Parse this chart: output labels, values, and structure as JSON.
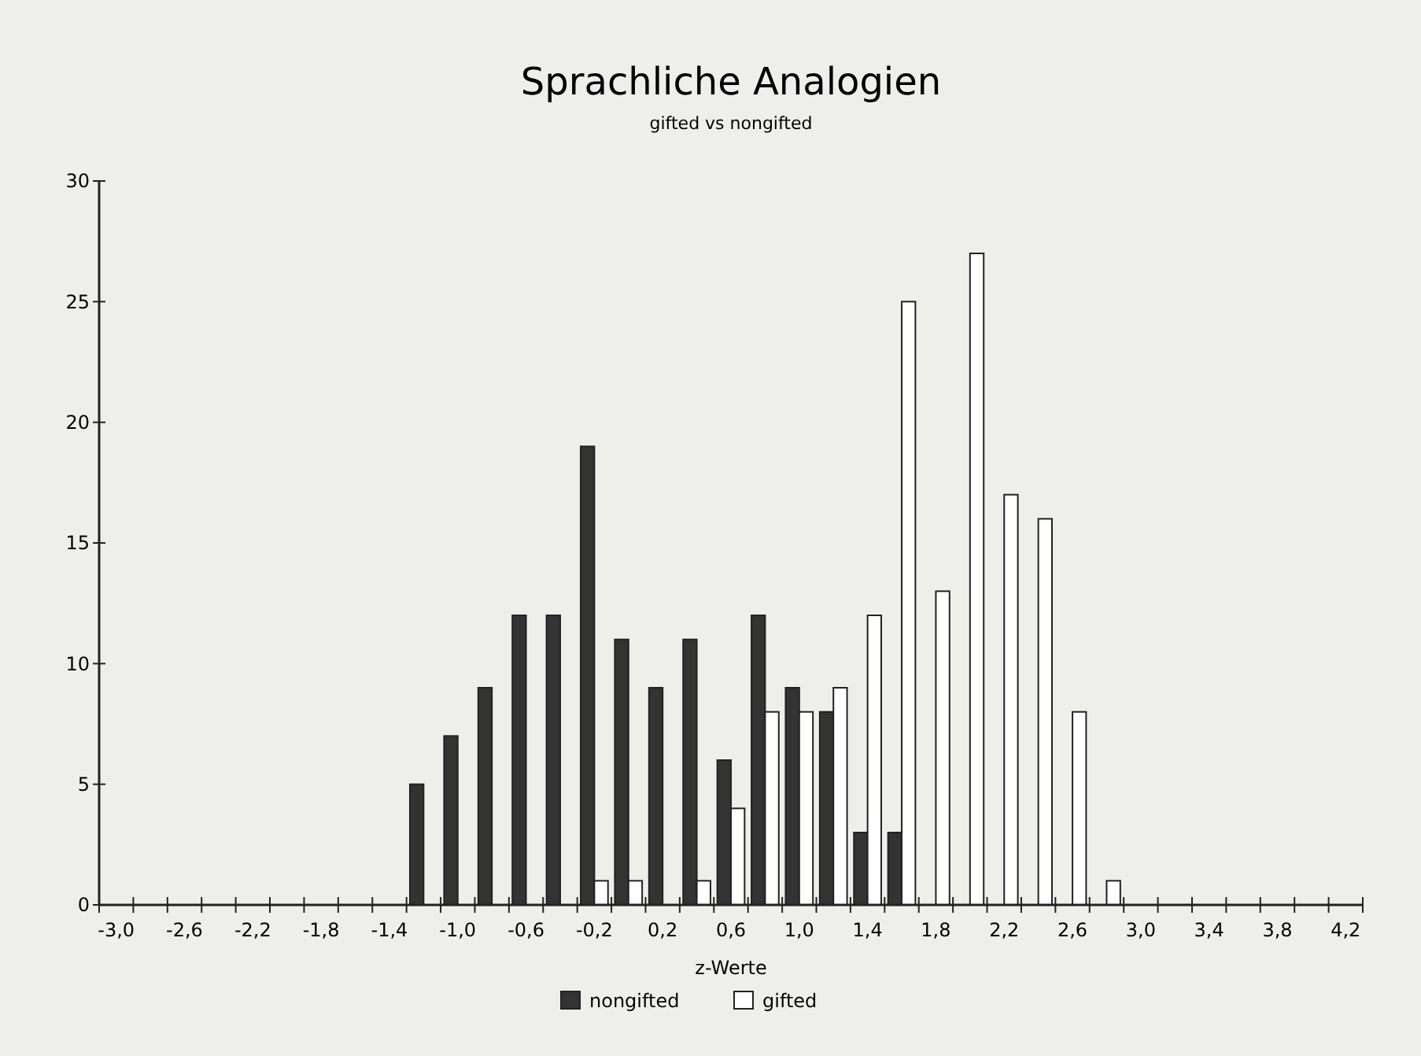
{
  "chart_data": {
    "type": "bar",
    "title": "Sprachliche Analogien",
    "subtitle": "gifted vs nongifted",
    "xlabel": "z-Werte",
    "categories": [
      "-3,0",
      null,
      "-2,6",
      null,
      "-2,2",
      null,
      "-1,8",
      null,
      "-1,4",
      null,
      "-1,0",
      null,
      "-0,6",
      null,
      "-0,2",
      null,
      "0,2",
      null,
      "0,6",
      null,
      "1,0",
      null,
      "1,4",
      null,
      "1,8",
      null,
      "2,2",
      null,
      "2,6",
      null,
      "3,0",
      null,
      "3,4",
      null,
      "3,8",
      null,
      "4,2"
    ],
    "series": [
      {
        "name": "nongifted",
        "color": "#333333",
        "values": [
          null,
          null,
          null,
          null,
          null,
          null,
          null,
          null,
          null,
          5,
          7,
          9,
          12,
          12,
          19,
          11,
          9,
          11,
          6,
          12,
          9,
          8,
          3,
          3,
          null,
          null,
          null,
          null,
          null,
          null,
          null,
          null,
          null,
          null,
          null,
          null,
          null
        ]
      },
      {
        "name": "gifted",
        "color": "#ffffff",
        "values": [
          null,
          null,
          null,
          null,
          null,
          null,
          null,
          null,
          null,
          null,
          null,
          null,
          null,
          null,
          1,
          1,
          null,
          1,
          4,
          8,
          8,
          9,
          12,
          25,
          13,
          27,
          17,
          16,
          8,
          1,
          null,
          null,
          null,
          null,
          null,
          null,
          null
        ]
      }
    ],
    "ylim": [
      0,
      30
    ],
    "yticks": [
      0,
      5,
      10,
      15,
      20,
      25,
      30
    ],
    "grid": false,
    "legend": "bottom"
  }
}
